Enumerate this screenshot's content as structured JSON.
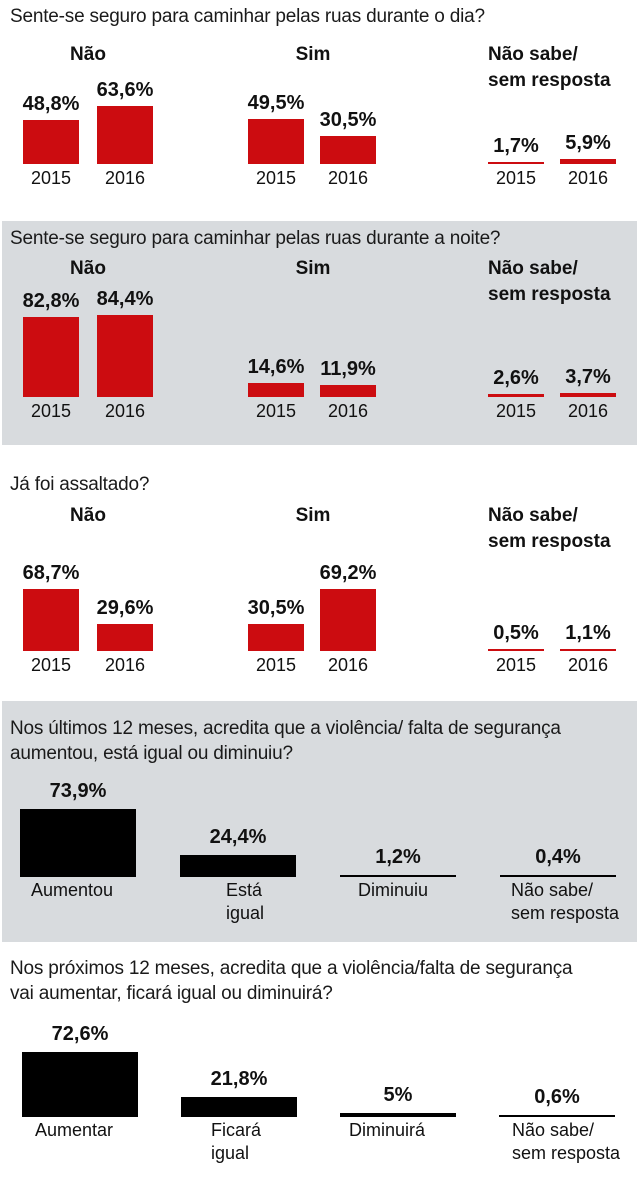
{
  "colors": {
    "red": "#cc0c10",
    "black": "#000000",
    "panel": "#d8dbde"
  },
  "chart_data": [
    {
      "type": "bar",
      "title": "Sente-se seguro para caminhar pelas ruas durante o dia?",
      "groups": [
        "Não",
        "Sim",
        "Não sabe/ sem resposta"
      ],
      "categories": [
        "2015",
        "2016"
      ],
      "series": [
        {
          "group": "Não",
          "values": [
            48.8,
            63.6
          ],
          "labels": [
            "48,8%",
            "63,6%"
          ]
        },
        {
          "group": "Sim",
          "values": [
            49.5,
            30.5
          ],
          "labels": [
            "49,5%",
            "30,5%"
          ]
        },
        {
          "group": "Não sabe/ sem resposta",
          "values": [
            1.7,
            5.9
          ],
          "labels": [
            "1,7%",
            "5,9%"
          ]
        }
      ],
      "unit": "%"
    },
    {
      "type": "bar",
      "title": "Sente-se seguro para caminhar pelas ruas durante a noite?",
      "groups": [
        "Não",
        "Sim",
        "Não sabe/ sem resposta"
      ],
      "categories": [
        "2015",
        "2016"
      ],
      "series": [
        {
          "group": "Não",
          "values": [
            82.8,
            84.4
          ],
          "labels": [
            "82,8%",
            "84,4%"
          ]
        },
        {
          "group": "Sim",
          "values": [
            14.6,
            11.9
          ],
          "labels": [
            "14,6%",
            "11,9%"
          ]
        },
        {
          "group": "Não sabe/ sem resposta",
          "values": [
            2.6,
            3.7
          ],
          "labels": [
            "2,6%",
            "3,7%"
          ]
        }
      ],
      "unit": "%"
    },
    {
      "type": "bar",
      "title": "Já foi assaltado?",
      "groups": [
        "Não",
        "Sim",
        "Não sabe/ sem resposta"
      ],
      "categories": [
        "2015",
        "2016"
      ],
      "series": [
        {
          "group": "Não",
          "values": [
            68.7,
            29.6
          ],
          "labels": [
            "68,7%",
            "29,6%"
          ]
        },
        {
          "group": "Sim",
          "values": [
            30.5,
            69.2
          ],
          "labels": [
            "30,5%",
            "69,2%"
          ]
        },
        {
          "group": "Não sabe/ sem resposta",
          "values": [
            0.5,
            1.1
          ],
          "labels": [
            "0,5%",
            "1,1%"
          ]
        }
      ],
      "unit": "%"
    },
    {
      "type": "bar",
      "title": "Nos últimos 12 meses, acredita que a violência/ falta de segurança aumentou, está igual ou diminuiu?",
      "categories": [
        "Aumentou",
        "Está igual",
        "Diminuiu",
        "Não sabe/ sem resposta"
      ],
      "values": [
        73.9,
        24.4,
        1.2,
        0.4
      ],
      "labels": [
        "73,9%",
        "24,4%",
        "1,2%",
        "0,4%"
      ],
      "unit": "%"
    },
    {
      "type": "bar",
      "title": "Nos próximos 12 meses, acredita que a violência/falta de segurança vai aumentar, ficará igual ou diminuirá?",
      "categories": [
        "Aumentar",
        "Ficará igual",
        "Diminuirá",
        "Não sabe/ sem resposta"
      ],
      "values": [
        72.6,
        21.8,
        5,
        0.6
      ],
      "labels": [
        "72,6%",
        "21,8%",
        "5%",
        "0,6%"
      ],
      "unit": "%"
    }
  ],
  "text": {
    "q1": "Sente-se seguro para caminhar pelas ruas durante o dia?",
    "q2": "Sente-se seguro para caminhar pelas ruas durante a noite?",
    "q3": "Já foi assaltado?",
    "q4_line1": "Nos últimos 12 meses, acredita que a violência/ falta de segurança",
    "q4_line2": "aumentou, está igual ou diminuiu?",
    "q5_line1": "Nos próximos 12 meses, acredita que a violência/falta de segurança",
    "q5_line2": "vai aumentar, ficará igual ou diminuirá?",
    "g_nao": "Não",
    "g_sim": "Sim",
    "g_ns1": "Não sabe/",
    "g_ns2": "sem resposta",
    "y2015": "2015",
    "y2016": "2016",
    "c4": [
      [
        "Aumentou"
      ],
      [
        "Está",
        "igual"
      ],
      [
        "Diminuiu"
      ],
      [
        "Não sabe/",
        "sem resposta"
      ]
    ],
    "c5": [
      [
        "Aumentar"
      ],
      [
        "Ficará",
        "igual"
      ],
      [
        "Diminuirá"
      ],
      [
        "Não sabe/",
        "sem resposta"
      ]
    ]
  }
}
